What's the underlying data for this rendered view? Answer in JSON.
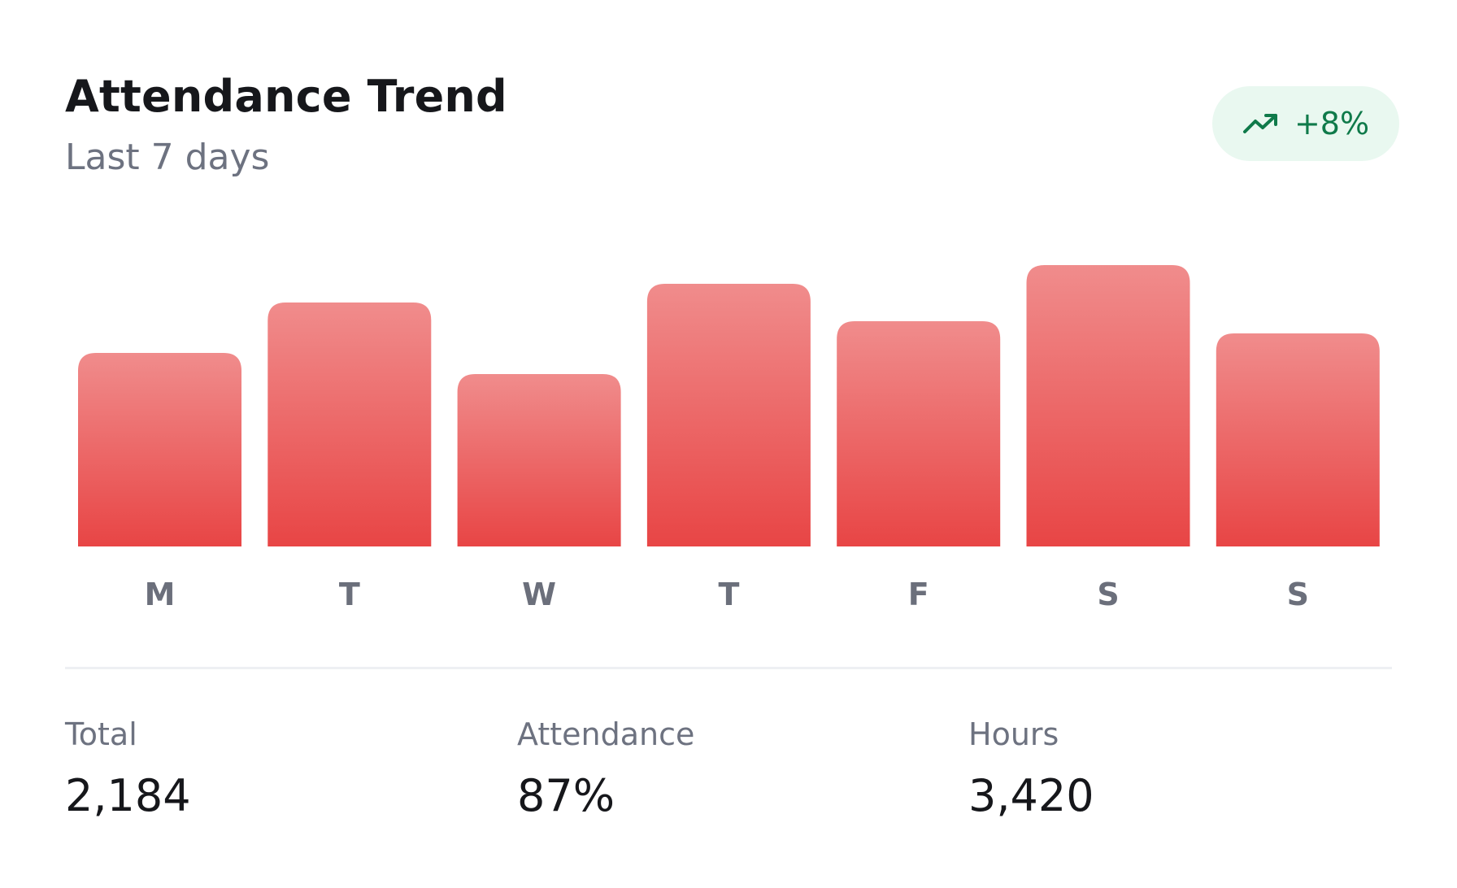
{
  "header": {
    "title": "Attendance Trend",
    "subtitle": "Last 7 days"
  },
  "trend": {
    "icon": "trending-up-icon",
    "value": "+8%",
    "color": "#0f7a4a",
    "background": "#e9f8f0"
  },
  "chart_data": {
    "type": "bar",
    "categories": [
      "M",
      "T",
      "W",
      "T",
      "F",
      "S",
      "S"
    ],
    "values": [
      238,
      300,
      212,
      323,
      277,
      346,
      262
    ],
    "ylim": [
      0,
      346
    ],
    "grid": false,
    "bar_color_top": "#f08c8c",
    "bar_color_bottom": "#e84545"
  },
  "stats": [
    {
      "label": "Total",
      "value": "2,184"
    },
    {
      "label": "Attendance",
      "value": "87%"
    },
    {
      "label": "Hours",
      "value": "3,420"
    }
  ]
}
